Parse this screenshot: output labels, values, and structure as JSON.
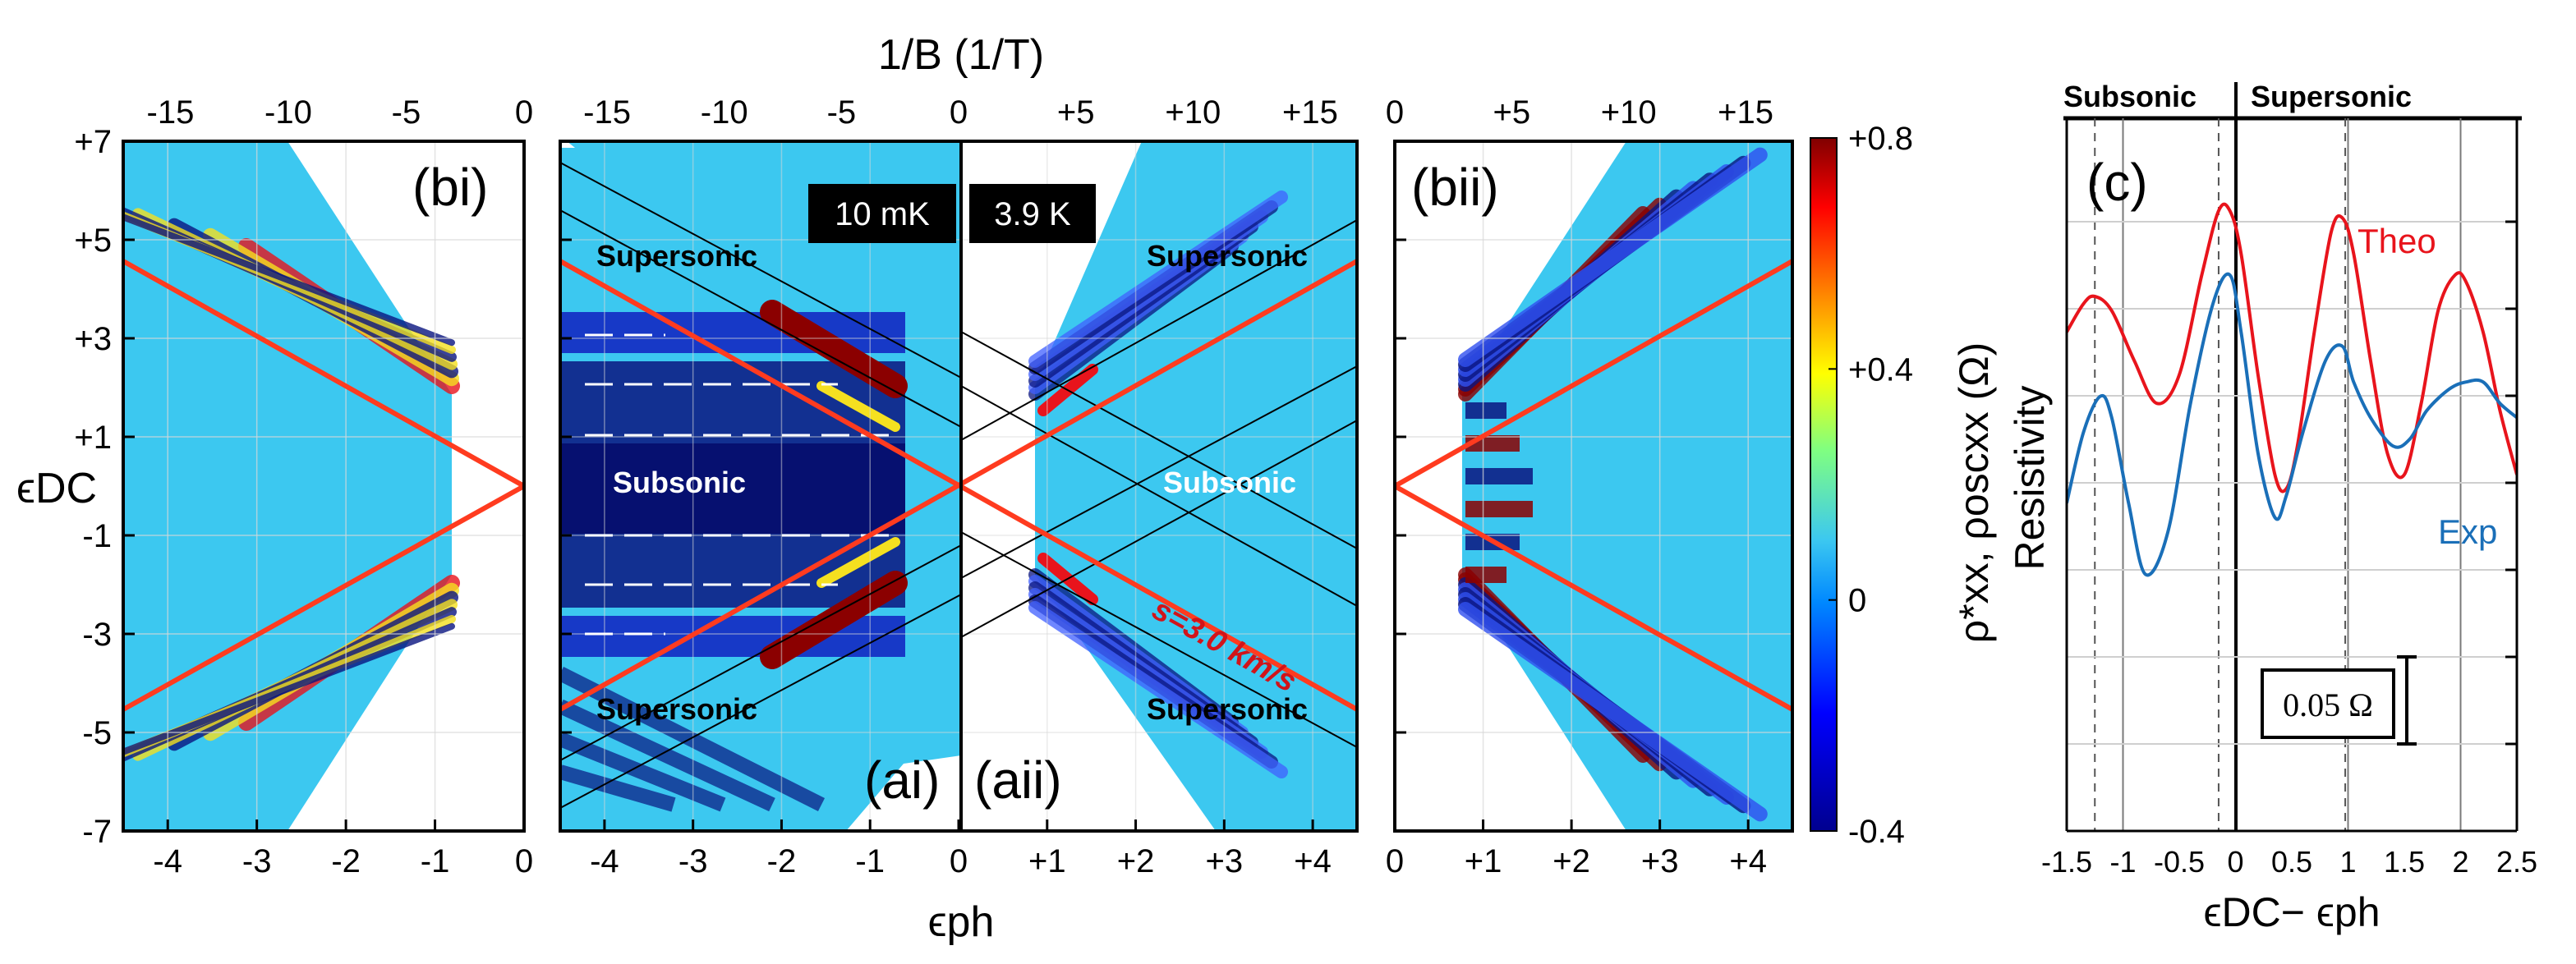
{
  "figure": {
    "top_axis_title": "1/B (1/T)",
    "x_axis_label": "ϵph",
    "y_axis_label": "ϵDC",
    "panel_c_x_label": "ϵDC− ϵph",
    "panel_c_y_label": "Resistivity",
    "colorbar_label": "ρ*xx, ρoscxx (Ω)",
    "colors": {
      "red_line": "#ff3b1f",
      "theo": "#e8141c",
      "exp": "#1a6fb8",
      "fringe_dark": "#0a1580",
      "fringe_hot": "#8b0000",
      "bg_cyan": "#3cc8f0"
    }
  },
  "panels": {
    "bi": {
      "label": "(bi)",
      "x_ticks": [
        "-4",
        "-3",
        "-2",
        "-1",
        "0"
      ],
      "top_ticks": [
        "-15",
        "-10",
        "-5",
        "0"
      ],
      "y_ticks": [
        "+7",
        "+5",
        "+3",
        "+1",
        "-1",
        "-3",
        "-5",
        "-7"
      ]
    },
    "a": {
      "label_left": "(ai)",
      "label_right": "(aii)",
      "x_ticks": [
        "-4",
        "-3",
        "-2",
        "-1",
        "0",
        "+1",
        "+2",
        "+3",
        "+4"
      ],
      "top_ticks": [
        "-15",
        "-10",
        "-5",
        "0",
        "+5",
        "+10",
        "+15"
      ],
      "badge_left": "10 mK",
      "badge_right": "3.9 K",
      "regions": {
        "sup_tl": "Supersonic",
        "sup_tr": "Supersonic",
        "sub_l": "Subsonic",
        "sub_r": "Subsonic",
        "sup_bl": "Supersonic",
        "sup_br": "Supersonic"
      },
      "sound_label": "s=3.0 km/s"
    },
    "bii": {
      "label": "(bii)",
      "x_ticks": [
        "0",
        "+1",
        "+2",
        "+3",
        "+4"
      ],
      "top_ticks": [
        "0",
        "+5",
        "+10",
        "+15"
      ]
    },
    "c": {
      "label": "(c)",
      "subsonic": "Subsonic",
      "supersonic": "Supersonic",
      "theo_label": "Theo",
      "exp_label": "Exp",
      "scale_label": "0.05 Ω",
      "x_ticks": [
        "-1.5",
        "-1",
        "-0.5",
        "0",
        "0.5",
        "1",
        "1.5",
        "2",
        "2.5"
      ]
    }
  },
  "colorbar": {
    "ticks": [
      "+0.8",
      "+0.4",
      "0",
      "-0.4"
    ],
    "range": [
      -0.4,
      0.8
    ]
  },
  "chart_data": [
    {
      "type": "heatmap",
      "title": "(bi)",
      "xlabel": "ϵph",
      "ylabel": "ϵDC",
      "xlim": [
        -4.5,
        0
      ],
      "ylim": [
        -7,
        7
      ],
      "top_axis": "1/B (1/T)",
      "top_range": [
        -17,
        0
      ],
      "lines": [
        {
          "name": "sound velocity",
          "slope": "ϵDC = ±ϵph"
        }
      ]
    },
    {
      "type": "heatmap",
      "title": "(ai) 10 mK / (aii) 3.9 K",
      "xlabel": "ϵph",
      "ylabel": "ϵDC",
      "xlim": [
        -4.5,
        4.5
      ],
      "ylim": [
        -7,
        7
      ],
      "top_axis": "1/B (1/T)",
      "top_range": [
        -17,
        17
      ],
      "annotation": "s=3.0 km/s"
    },
    {
      "type": "heatmap",
      "title": "(bii)",
      "xlabel": "ϵph",
      "xlim": [
        0,
        4.5
      ],
      "ylim": [
        -7,
        7
      ],
      "top_range": [
        0,
        17
      ]
    },
    {
      "type": "line",
      "title": "(c)",
      "xlabel": "ϵDC− ϵph",
      "ylabel": "Resistivity",
      "xlim": [
        -1.5,
        2.5
      ],
      "series": [
        {
          "name": "Theo",
          "x": [
            -1.5,
            -1.35,
            -1.25,
            -1.1,
            -0.9,
            -0.7,
            -0.5,
            -0.3,
            -0.15,
            -0.05,
            0.05,
            0.2,
            0.35,
            0.45,
            0.55,
            0.7,
            0.85,
            0.95,
            1.05,
            1.2,
            1.35,
            1.5,
            1.65,
            1.8,
            1.95,
            2.05,
            2.2,
            2.35,
            2.5
          ],
          "y": [
            0.3,
            0.26,
            0.25,
            0.27,
            0.34,
            0.4,
            0.36,
            0.22,
            0.13,
            0.13,
            0.19,
            0.36,
            0.5,
            0.52,
            0.46,
            0.3,
            0.16,
            0.14,
            0.19,
            0.34,
            0.47,
            0.5,
            0.4,
            0.27,
            0.22,
            0.23,
            0.3,
            0.41,
            0.5
          ]
        },
        {
          "name": "Exp",
          "x": [
            -1.5,
            -1.35,
            -1.2,
            -1.1,
            -0.95,
            -0.8,
            -0.6,
            -0.4,
            -0.2,
            -0.05,
            0.05,
            0.2,
            0.35,
            0.45,
            0.6,
            0.8,
            0.95,
            1.05,
            1.2,
            1.4,
            1.55,
            1.7,
            1.9,
            2.05,
            2.2,
            2.35,
            2.5
          ],
          "y": [
            0.54,
            0.44,
            0.39,
            0.42,
            0.54,
            0.64,
            0.58,
            0.4,
            0.26,
            0.22,
            0.3,
            0.47,
            0.56,
            0.53,
            0.44,
            0.34,
            0.32,
            0.37,
            0.42,
            0.46,
            0.45,
            0.41,
            0.38,
            0.37,
            0.37,
            0.4,
            0.42
          ]
        }
      ],
      "vlines_dashed": [
        -1.25,
        -0.15,
        0.975
      ],
      "vlines_solid": [
        -1,
        0,
        1,
        2
      ],
      "scale_bar_ohm": 0.05
    }
  ]
}
